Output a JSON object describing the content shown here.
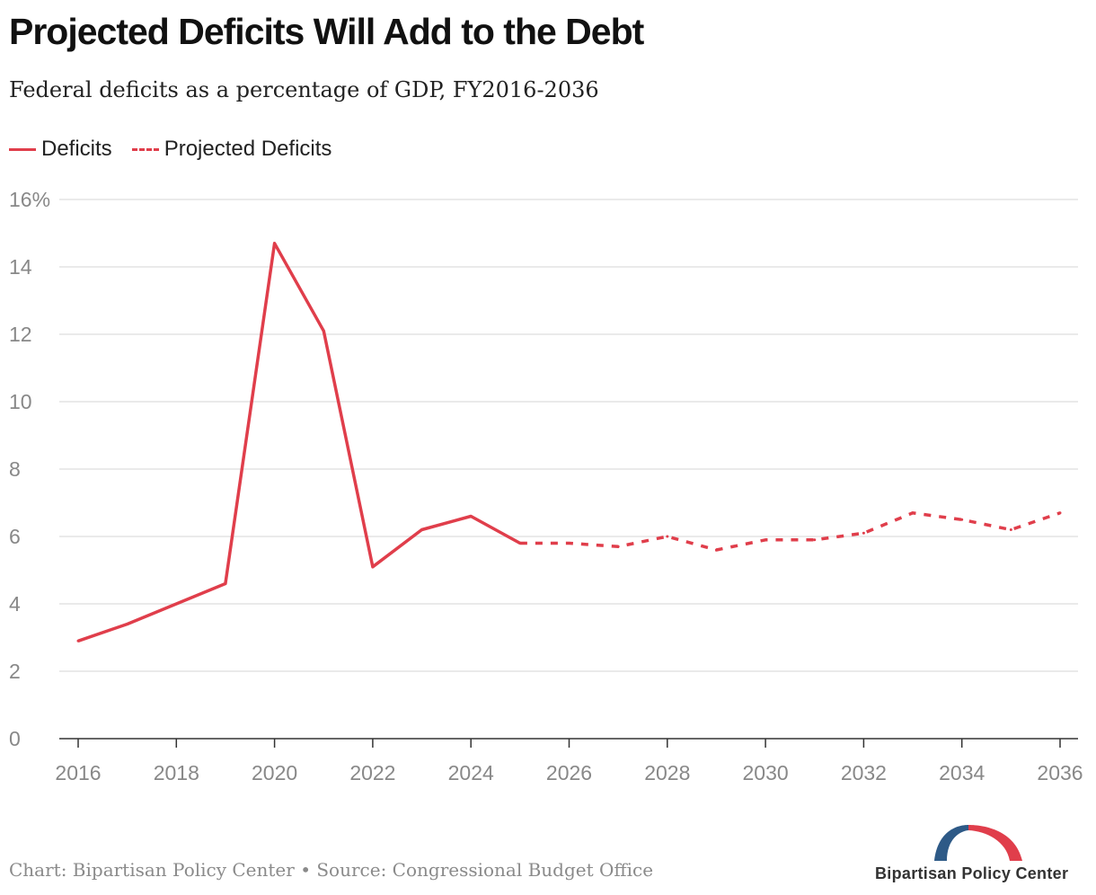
{
  "title": "Projected Deficits Will Add to the Debt",
  "subtitle": "Federal deficits as a percentage of GDP, FY2016-2036",
  "legend": {
    "actual_label": "Deficits",
    "projected_label": "Projected Deficits"
  },
  "footer": "Chart: Bipartisan Policy Center • Source: Congressional Budget Office",
  "logo": {
    "text": "Bipartisan Policy Center",
    "colors": [
      "#2e5a87",
      "#e03e4b"
    ]
  },
  "colors": {
    "series": "#e03e4b",
    "grid": "#e3e3e3",
    "axis": "#333333",
    "tick_text": "#888888"
  },
  "chart_data": {
    "type": "line",
    "title": "Projected Deficits Will Add to the Debt",
    "subtitle": "Federal deficits as a percentage of GDP, FY2016-2036",
    "xlabel": "",
    "ylabel": "",
    "xlim": [
      2016,
      2036
    ],
    "ylim": [
      0,
      16
    ],
    "x_ticks": [
      2016,
      2018,
      2020,
      2022,
      2024,
      2026,
      2028,
      2030,
      2032,
      2034,
      2036
    ],
    "y_ticks": [
      0,
      2,
      4,
      6,
      8,
      10,
      12,
      14,
      16
    ],
    "y_tick_labels": [
      "0",
      "2",
      "4",
      "6",
      "8",
      "10",
      "12",
      "14",
      "16%"
    ],
    "grid": true,
    "legend_position": "top-left",
    "series": [
      {
        "name": "Deficits",
        "style": "solid",
        "x": [
          2016,
          2017,
          2018,
          2019,
          2020,
          2021,
          2022,
          2023,
          2024,
          2025
        ],
        "values": [
          2.9,
          3.4,
          4.0,
          4.6,
          14.7,
          12.1,
          5.1,
          6.2,
          6.6,
          5.8
        ]
      },
      {
        "name": "Projected Deficits",
        "style": "dashed",
        "x": [
          2025,
          2026,
          2027,
          2028,
          2029,
          2030,
          2031,
          2032,
          2033,
          2034,
          2035,
          2036
        ],
        "values": [
          5.8,
          5.8,
          5.7,
          6.0,
          5.6,
          5.9,
          5.9,
          6.1,
          6.7,
          6.5,
          6.2,
          6.7
        ]
      }
    ]
  }
}
